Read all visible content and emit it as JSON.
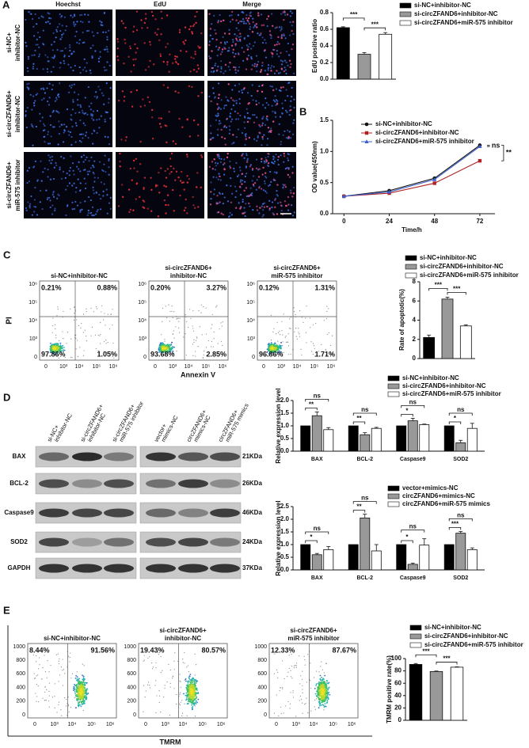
{
  "panel_labels": [
    "A",
    "B",
    "C",
    "D",
    "E"
  ],
  "edu_images": {
    "columns": [
      "Hoechst",
      "EdU",
      "Merge"
    ],
    "rows": [
      [
        "si-NC+",
        "inhibitor-NC"
      ],
      [
        "si-circZFAND6+",
        "inhibitor-NC"
      ],
      [
        "si-circZFAND6+",
        "miR-575 inhibitor"
      ]
    ]
  },
  "flow_apoptosis": {
    "titles": [
      [
        "si-NC+inhibitor-NC"
      ],
      [
        "si-circZFAND6+",
        "inhibitor-NC"
      ],
      [
        "si-circZFAND6+",
        "miR-575 inhibitor"
      ]
    ],
    "quadrants": [
      [
        "0.21%",
        "0.88%",
        "97.86%",
        "1.05%"
      ],
      [
        "0.20%",
        "3.27%",
        "93.68%",
        "2.85%"
      ],
      [
        "0.12%",
        "1.31%",
        "96.86%",
        "1.71%"
      ]
    ],
    "yticks": [
      "10⁶",
      "10⁵",
      "10⁴",
      "10³",
      "0"
    ],
    "xticks": [
      "0",
      "10³",
      "10⁴",
      "10⁵",
      "10⁶"
    ],
    "xlabel": "Annexin V",
    "ylabel": "PI"
  },
  "western": {
    "lanes": [
      [
        "si-NC+",
        "inhibitor-NC"
      ],
      [
        "si-circZFAND6+",
        "inhibitor-NC"
      ],
      [
        "si-circZFAND6+",
        "miR-575 inhibitor"
      ],
      [
        "vector+",
        "mimics-NC"
      ],
      [
        "circZFAND6+",
        "mimics-NC"
      ],
      [
        "circZFAND6+",
        "miR-575 mimics"
      ]
    ],
    "proteins": [
      "BAX",
      "BCL-2",
      "Caspase9",
      "SOD2",
      "GAPDH"
    ],
    "sizes": [
      "21KDa",
      "26KDa",
      "46KDa",
      "24KDa",
      "37KDa"
    ]
  },
  "flow_tmrm": {
    "titles": [
      [
        "si-NC+inhibitor-NC"
      ],
      [
        "si-circZFAND6+",
        "inhibitor-NC"
      ],
      [
        "si-circZFAND6+",
        "miR-575 inhibitor"
      ]
    ],
    "quadrants": [
      [
        "8.44%",
        "91.56%"
      ],
      [
        "19.43%",
        "80.57%"
      ],
      [
        "12.33%",
        "87.67%"
      ]
    ],
    "yticks": [
      "1000",
      "800",
      "600",
      "400",
      "200",
      "0"
    ],
    "xticks": [
      "0",
      "10³",
      "10⁴",
      "10⁵",
      "10⁶"
    ],
    "xlabel": "TMRM"
  },
  "chart_data": [
    {
      "type": "bar",
      "ylabel": "EdU positive ratio",
      "categories": [
        "si-NC+inhibitor-NC",
        "si-circZFAND6+inhibitor-NC",
        "si-circZFAND6+miR-575 inhibitor"
      ],
      "values": [
        0.62,
        0.3,
        0.54
      ],
      "errors": [
        0.01,
        0.02,
        0.02
      ],
      "colors": [
        "#000000",
        "#999999",
        "#ffffff"
      ],
      "ylim": [
        0,
        0.8
      ],
      "yticks": [
        {
          "value": 0,
          "label": "0.0"
        },
        0.2,
        0.4,
        0.6,
        0.8
      ],
      "annotations": [
        "***",
        "***"
      ]
    },
    {
      "type": "line",
      "ylabel": "OD value(450nm)",
      "xlabel": "Time/h",
      "x": [
        0,
        24,
        48,
        72
      ],
      "series": [
        {
          "name": "si-NC+inhibitor-NC",
          "color": "#111111",
          "marker": "circle",
          "values": [
            0.28,
            0.37,
            0.57,
            1.1
          ]
        },
        {
          "name": "si-circZFAND6+inhibitor-NC",
          "color": "#b22222",
          "marker": "square",
          "values": [
            0.28,
            0.33,
            0.49,
            0.85
          ]
        },
        {
          "name": "si-circZFAND6+miR-575 inhibitor",
          "color": "#3a5fcd",
          "marker": "triangle",
          "values": [
            0.28,
            0.35,
            0.55,
            1.08
          ]
        }
      ],
      "xlim": [
        -6,
        80
      ],
      "xticks": [
        0,
        24,
        48,
        72
      ],
      "ylim": [
        0,
        1.5
      ],
      "yticks": [
        {
          "value": 0,
          "label": "0.0"
        },
        0.5,
        {
          "value": 1,
          "label": "1.0"
        },
        1.5
      ],
      "annotations": [
        "ns",
        "**"
      ]
    },
    {
      "type": "bar",
      "ylabel": "Rate of apoptotic(%)",
      "categories": [
        "si-NC+inhibitor-NC",
        "si-circZFAND6+inhibitor-NC",
        "si-circZFAND6+miR-575 inhibitor"
      ],
      "values": [
        2.2,
        6.2,
        3.4
      ],
      "errors": [
        0.25,
        0.2,
        0.12
      ],
      "colors": [
        "#000000",
        "#999999",
        "#ffffff"
      ],
      "ylim": [
        0,
        8
      ],
      "yticks": [
        0,
        2,
        4,
        6,
        8
      ],
      "annotations": [
        "***",
        "***"
      ]
    },
    {
      "type": "grouped_bar",
      "ylabel": "Relative expression level",
      "categories": [
        "BAX",
        "BCL-2",
        "Caspase9",
        "SOD2"
      ],
      "series": [
        {
          "name": "si-NC+inhibitor-NC",
          "color": "#000000",
          "values": [
            1,
            1,
            1,
            1
          ]
        },
        {
          "name": "si-circZFAND6+inhibitor-NC",
          "color": "#999999",
          "values": [
            1.4,
            0.65,
            1.2,
            0.33
          ],
          "errors": [
            0.15,
            0.08,
            0.1,
            0.1
          ]
        },
        {
          "name": "si-circZFAND6+miR-575 inhibitor",
          "color": "#ffffff",
          "values": [
            0.85,
            0.9,
            1.05,
            0.9
          ],
          "errors": [
            0.08,
            0.04,
            0.02,
            0.2
          ]
        }
      ],
      "ylim": [
        0,
        2
      ],
      "yticks": [
        {
          "value": 0,
          "label": "0.0"
        },
        0.5,
        {
          "value": 1,
          "label": "1.0"
        },
        1.5,
        {
          "value": 2,
          "label": "2.0"
        }
      ],
      "annotations": [
        [
          "ns",
          "**"
        ],
        [
          "ns",
          "**"
        ],
        [
          "ns",
          "*"
        ],
        [
          "ns",
          "*"
        ]
      ]
    },
    {
      "type": "grouped_bar",
      "ylabel": "Relative expression level",
      "categories": [
        "BAX",
        "BCL-2",
        "Caspase9",
        "SOD2"
      ],
      "series": [
        {
          "name": "vector+mimics-NC",
          "color": "#000000",
          "values": [
            1,
            1,
            1,
            1
          ]
        },
        {
          "name": "circZFAND6+mimics-NC",
          "color": "#999999",
          "values": [
            0.6,
            2.05,
            0.22,
            1.45
          ],
          "errors": [
            0.05,
            0.15,
            0.05,
            0.07
          ]
        },
        {
          "name": "circZFAND6+miR-575 mimics",
          "color": "#ffffff",
          "values": [
            0.8,
            0.75,
            0.98,
            0.8
          ],
          "errors": [
            0.12,
            0.25,
            0.25,
            0.07
          ]
        }
      ],
      "ylim": [
        0,
        2.5
      ],
      "yticks": [
        {
          "value": 0,
          "label": "0.0"
        },
        0.5,
        {
          "value": 1,
          "label": "1.0"
        },
        1.5,
        {
          "value": 2,
          "label": "2.0"
        },
        2.5
      ],
      "annotations": [
        [
          "ns",
          "*"
        ],
        [
          "ns",
          "**"
        ],
        [
          "ns",
          "*"
        ],
        [
          "ns",
          "***"
        ]
      ]
    },
    {
      "type": "bar",
      "ylabel": "TMRM positive rate(%)",
      "categories": [
        "si-NC+inhibitor-NC",
        "si-circZFAND6+inhibitor-NC",
        "si-circZFAND6+miR-575 inhibitor"
      ],
      "values": [
        90.5,
        79,
        86
      ],
      "errors": [
        1.5,
        0.8,
        0.6
      ],
      "colors": [
        "#000000",
        "#999999",
        "#ffffff"
      ],
      "ylim": [
        0,
        100
      ],
      "yticks": [
        0,
        20,
        40,
        60,
        80,
        100
      ],
      "annotations": [
        "***",
        "***"
      ]
    }
  ]
}
